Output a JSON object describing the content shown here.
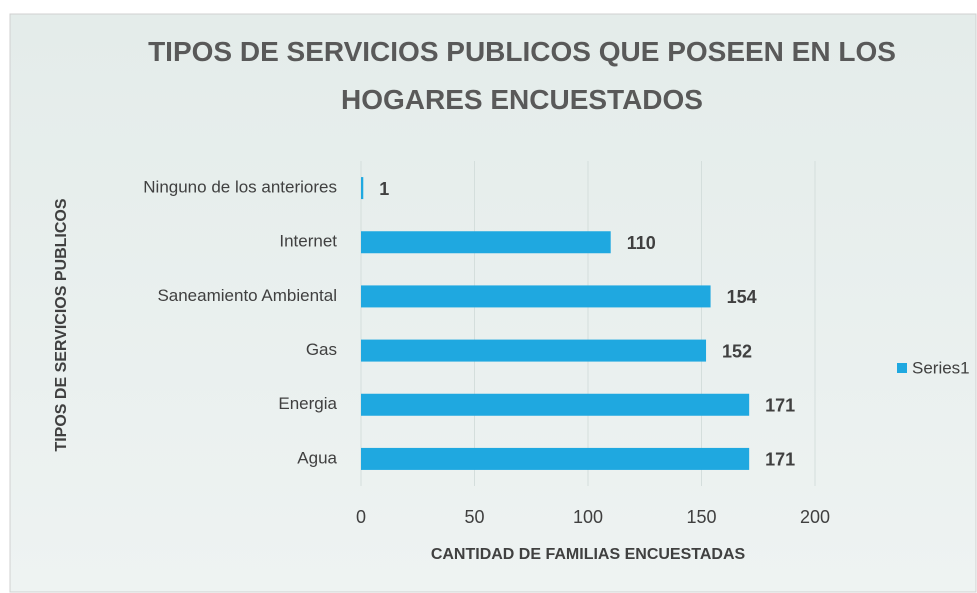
{
  "chart_data": {
    "type": "barh",
    "title": "TIPOS DE SERVICIOS PUBLICOS QUE POSEEN EN LOS HOGARES ENCUESTADOS",
    "x_label": "CANTIDAD DE FAMILIAS ENCUESTADAS",
    "y_label": "TIPOS DE SERVICIOS PUBLICOS",
    "categories": [
      "Ninguno de los anteriores",
      "Internet",
      "Saneamiento Ambiental",
      "Gas",
      "Energia",
      "Agua"
    ],
    "series": [
      {
        "name": "Series1",
        "color": "#1fa8e0",
        "values": [
          1,
          110,
          154,
          152,
          171,
          171
        ]
      }
    ],
    "xlim": [
      0,
      200
    ],
    "xticks": [
      0,
      50,
      100,
      150,
      200
    ],
    "grid": true,
    "legend": "right"
  }
}
